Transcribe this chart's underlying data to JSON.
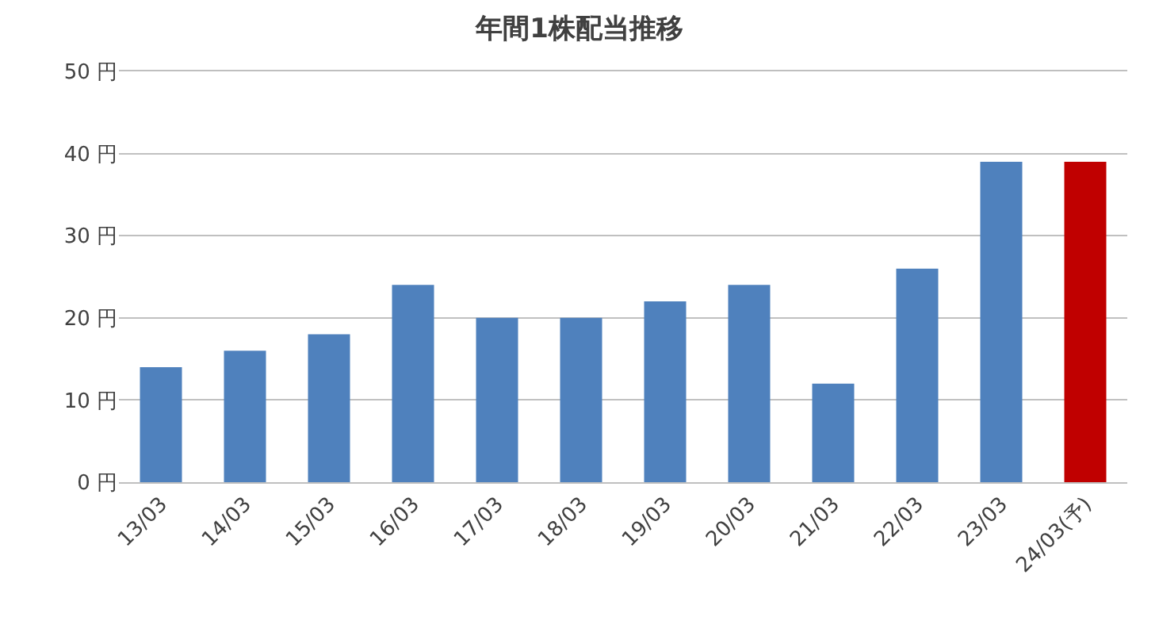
{
  "chart_data": {
    "type": "bar",
    "title": "年間1株配当推移",
    "categories": [
      "13/03",
      "14/03",
      "15/03",
      "16/03",
      "17/03",
      "18/03",
      "19/03",
      "20/03",
      "21/03",
      "22/03",
      "23/03",
      "24/03(予)"
    ],
    "values": [
      14,
      16,
      18,
      24,
      20,
      20,
      22,
      24,
      12,
      26,
      39,
      39
    ],
    "colors": [
      "#4f81bd",
      "#4f81bd",
      "#4f81bd",
      "#4f81bd",
      "#4f81bd",
      "#4f81bd",
      "#4f81bd",
      "#4f81bd",
      "#4f81bd",
      "#4f81bd",
      "#4f81bd",
      "#c00000"
    ],
    "ylim": [
      0,
      50
    ],
    "yticks": [
      {
        "value": 0,
        "label": "0 円"
      },
      {
        "value": 10,
        "label": "10 円"
      },
      {
        "value": 20,
        "label": "20 円"
      },
      {
        "value": 30,
        "label": "30 円"
      },
      {
        "value": 40,
        "label": "40 円"
      },
      {
        "value": 50,
        "label": "50 円"
      }
    ],
    "grid": "y"
  }
}
